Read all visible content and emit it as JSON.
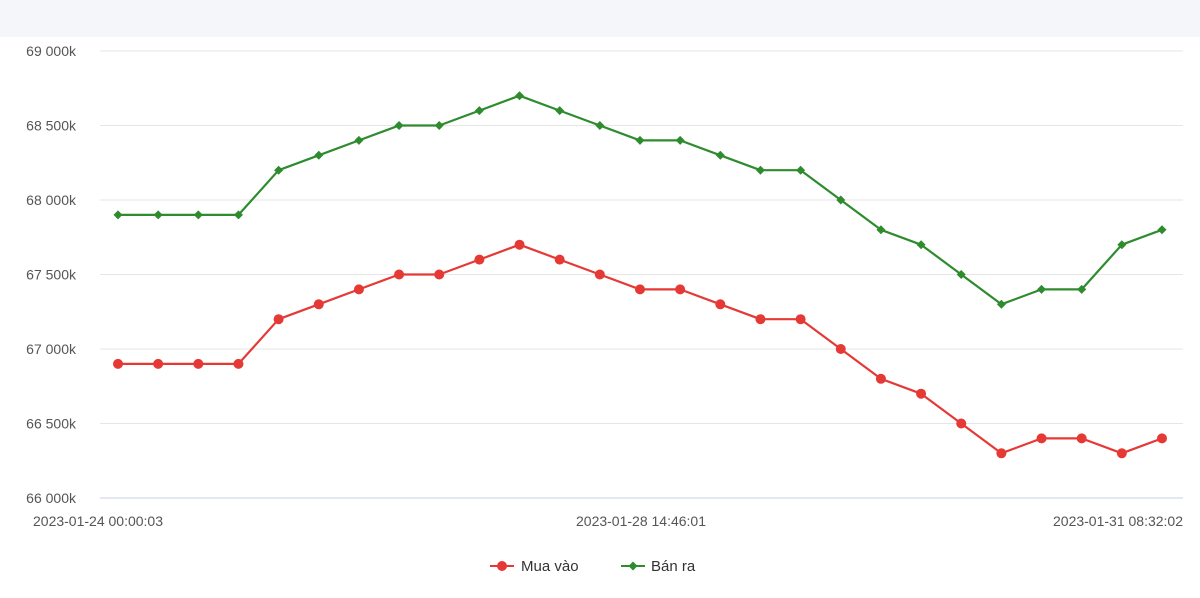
{
  "chart_data": {
    "type": "line",
    "title": "",
    "xlabel": "",
    "ylabel": "",
    "x_ticks": [
      "2023-01-24 00:00:03",
      "2023-01-28 14:46:01",
      "2023-01-31 08:32:02"
    ],
    "y_ticks": [
      "66 000k",
      "66 500k",
      "67 000k",
      "67 500k",
      "68 000k",
      "68 500k",
      "69 000k"
    ],
    "ylim": [
      66000,
      69000
    ],
    "grid": true,
    "legend": "bottom-center",
    "series": [
      {
        "name": "Mua vào",
        "color": "#e53935",
        "marker": "circle",
        "values": [
          66900,
          66900,
          66900,
          66900,
          67200,
          67300,
          67400,
          67500,
          67500,
          67600,
          67700,
          67600,
          67500,
          67400,
          67400,
          67300,
          67200,
          67200,
          67000,
          66800,
          66700,
          66500,
          66300,
          66400,
          66400,
          66300,
          66400
        ]
      },
      {
        "name": "Bán ra",
        "color": "#2e8b2e",
        "marker": "diamond",
        "values": [
          67900,
          67900,
          67900,
          67900,
          68200,
          68300,
          68400,
          68500,
          68500,
          68600,
          68700,
          68600,
          68500,
          68400,
          68400,
          68300,
          68200,
          68200,
          68000,
          67800,
          67700,
          67500,
          67300,
          67400,
          67400,
          67700,
          67800
        ]
      }
    ]
  }
}
